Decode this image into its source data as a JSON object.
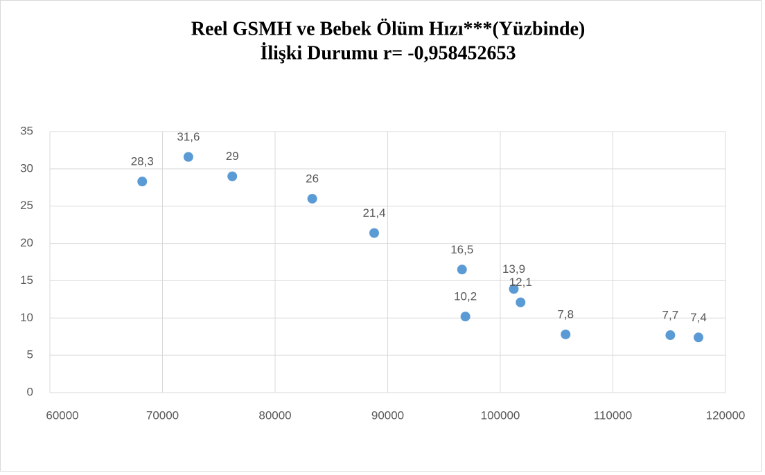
{
  "chart_data": {
    "type": "scatter",
    "title": "Reel GSMH ve Bebek Ölüm Hızı***(Yüzbinde)",
    "subtitle": "İlişki Durumu r= -0,958452653",
    "x": [
      68200,
      72300,
      76200,
      83300,
      88800,
      96600,
      96900,
      101200,
      101800,
      105800,
      115100,
      117600
    ],
    "values": [
      28.3,
      31.6,
      29,
      26,
      21.4,
      16.5,
      10.2,
      13.9,
      12.1,
      7.8,
      7.7,
      7.4
    ],
    "value_labels": [
      "28,3",
      "31,6",
      "29",
      "26",
      "21,4",
      "16,5",
      "10,2",
      "13,9",
      "12,1",
      "7,8",
      "7,7",
      "7,4"
    ],
    "color": "#5b9bd5",
    "xlim": [
      60000,
      120000
    ],
    "xticks": [
      60000,
      70000,
      80000,
      90000,
      100000,
      110000,
      120000
    ],
    "ylim": [
      0,
      35
    ],
    "yticks": [
      0,
      5,
      10,
      15,
      20,
      25,
      30,
      35
    ],
    "grid": true
  }
}
